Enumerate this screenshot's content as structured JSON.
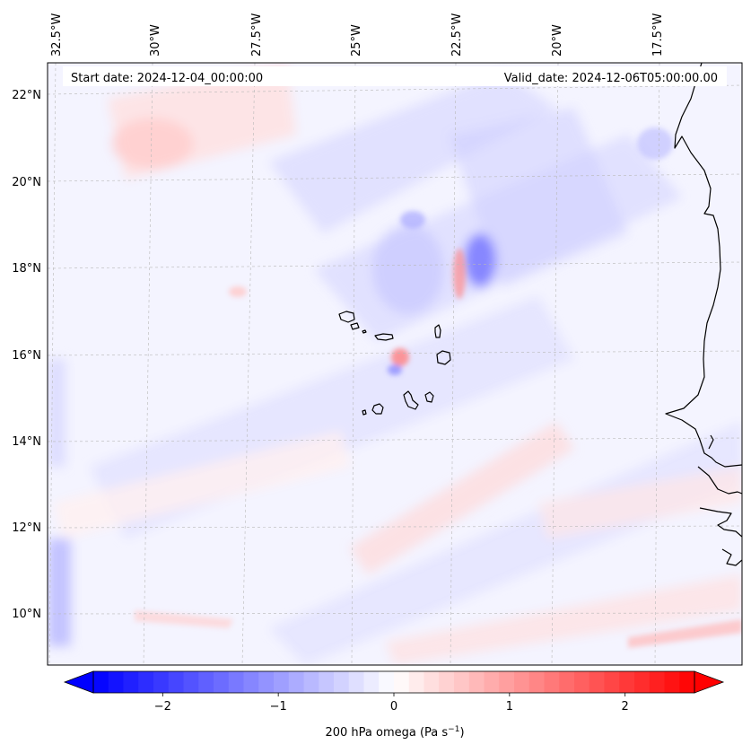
{
  "map": {
    "start_date": "Start date: 2024-12-04_00:00:00",
    "valid_date": "Valid_date: 2024-12-06T05:00:00.00",
    "lon_labels": [
      "32.5°W",
      "30°W",
      "27.5°W",
      "25°W",
      "22.5°W",
      "20°W",
      "17.5°W"
    ],
    "lat_labels": [
      "22°N",
      "20°N",
      "18°N",
      "16°N",
      "14°N",
      "12°N",
      "10°N"
    ],
    "islands": [
      "Santo Antão",
      "São Vicente",
      "Santa Luzia",
      "São Nicolau",
      "Sal",
      "Boa Vista",
      "Maio",
      "Santiago",
      "Fogo",
      "Brava"
    ]
  },
  "colorbar": {
    "ticks": [
      "−2",
      "−1",
      "0",
      "1",
      "2"
    ],
    "tick_values": [
      -2,
      -1,
      0,
      1,
      2
    ],
    "range": [
      -2.6,
      2.6
    ],
    "colormap": "bwr",
    "colors": {
      "min": "#0000ff",
      "mid": "#ffffff",
      "max": "#ff0000"
    },
    "label_main": "200 hPa omega (Pa s",
    "label_sup": "−1",
    "label_tail": ")"
  },
  "field": {
    "variable": "200 hPa omega",
    "units": "Pa s−1"
  }
}
